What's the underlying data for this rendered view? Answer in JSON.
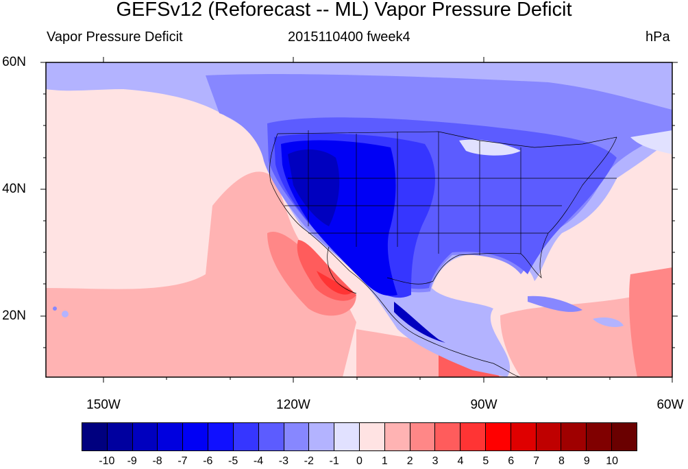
{
  "title": "GEFSv12 (Reforecast -- ML) Vapor Pressure Deficit",
  "left_string": "Vapor Pressure Deficit",
  "center_string": "2015110400 fweek4",
  "right_string": "hPa",
  "lat_labels": [
    "60N",
    "40N",
    "20N"
  ],
  "lon_labels": [
    "150W",
    "120W",
    "90W",
    "60W"
  ],
  "colorbar": {
    "labels": [
      "-10",
      "-9",
      "-8",
      "-7",
      "-6",
      "-5",
      "-4",
      "-3",
      "-2",
      "-1",
      "0",
      "1",
      "2",
      "3",
      "4",
      "5",
      "6",
      "7",
      "8",
      "9",
      "10"
    ],
    "colors": [
      "#00007f",
      "#00009f",
      "#0000bf",
      "#0000df",
      "#0000f5",
      "#1010ff",
      "#3636ff",
      "#5c5cff",
      "#8787ff",
      "#b3b3ff",
      "#e1e1ff",
      "#ffe3e3",
      "#ffb3b3",
      "#ff8787",
      "#ff5c5c",
      "#ff3434",
      "#ff0000",
      "#df0000",
      "#bf0000",
      "#9f0000",
      "#800000",
      "#6a0000"
    ]
  }
}
